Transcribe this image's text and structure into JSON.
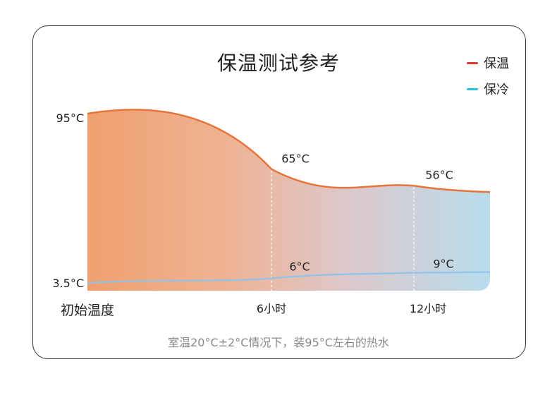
{
  "chart_data": {
    "type": "area",
    "title": "保温测试参考",
    "x": [
      "初始温度",
      "6小时",
      "12小时"
    ],
    "series": [
      {
        "name": "保温",
        "color": "#e0392f",
        "line_color": "#e8733a",
        "values": [
          95,
          65,
          56
        ],
        "labels": [
          "95°C",
          "65°C",
          "56°C"
        ]
      },
      {
        "name": "保冷",
        "color": "#22c4d8",
        "line_color": "#8ec3ec",
        "values": [
          3.5,
          6,
          9
        ],
        "labels": [
          "3.5°C",
          "6°C",
          "9°C"
        ]
      }
    ],
    "ylim": [
      0,
      100
    ],
    "note": "室温20°C±2°C情况下，装95°C左右的热水"
  }
}
